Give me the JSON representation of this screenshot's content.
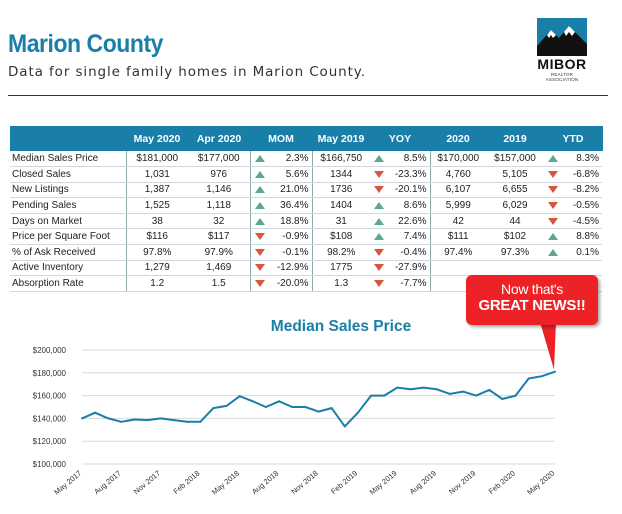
{
  "header": {
    "title": "Marion County",
    "subtitle": "Data for single family homes in Marion County."
  },
  "logo": {
    "brand": "MIBOR",
    "tagline": "REALTOR ASSOCIATION",
    "colors": {
      "background": "#1a7fa8",
      "mountain": "#111111",
      "snow": "#ffffff"
    }
  },
  "table": {
    "headers": [
      "",
      "May 2020",
      "Apr 2020",
      "MOM",
      "May 2019",
      "YOY",
      "2020",
      "2019",
      "YTD"
    ],
    "rows": [
      {
        "label": "Median Sales Price",
        "may2020": "$181,000",
        "apr2020": "$177,000",
        "mom_dir": "up",
        "mom": "2.3%",
        "may2019": "$166,750",
        "yoy_dir": "up",
        "yoy": "8.5%",
        "y2020": "$170,000",
        "y2019": "$157,000",
        "ytd_dir": "up",
        "ytd": "8.3%"
      },
      {
        "label": "Closed Sales",
        "may2020": "1,031",
        "apr2020": "976",
        "mom_dir": "up",
        "mom": "5.6%",
        "may2019": "1344",
        "yoy_dir": "down",
        "yoy": "-23.3%",
        "y2020": "4,760",
        "y2019": "5,105",
        "ytd_dir": "down",
        "ytd": "-6.8%"
      },
      {
        "label": "New Listings",
        "may2020": "1,387",
        "apr2020": "1,146",
        "mom_dir": "up",
        "mom": "21.0%",
        "may2019": "1736",
        "yoy_dir": "down",
        "yoy": "-20.1%",
        "y2020": "6,107",
        "y2019": "6,655",
        "ytd_dir": "down",
        "ytd": "-8.2%"
      },
      {
        "label": "Pending Sales",
        "may2020": "1,525",
        "apr2020": "1,118",
        "mom_dir": "up",
        "mom": "36.4%",
        "may2019": "1404",
        "yoy_dir": "up",
        "yoy": "8.6%",
        "y2020": "5,999",
        "y2019": "6,029",
        "ytd_dir": "down",
        "ytd": "-0.5%"
      },
      {
        "label": "Days on Market",
        "may2020": "38",
        "apr2020": "32",
        "mom_dir": "up",
        "mom": "18.8%",
        "may2019": "31",
        "yoy_dir": "up",
        "yoy": "22.6%",
        "y2020": "42",
        "y2019": "44",
        "ytd_dir": "down",
        "ytd": "-4.5%"
      },
      {
        "label": "Price per Square Foot",
        "may2020": "$116",
        "apr2020": "$117",
        "mom_dir": "down",
        "mom": "-0.9%",
        "may2019": "$108",
        "yoy_dir": "up",
        "yoy": "7.4%",
        "y2020": "$111",
        "y2019": "$102",
        "ytd_dir": "up",
        "ytd": "8.8%"
      },
      {
        "label": "% of Ask Received",
        "may2020": "97.8%",
        "apr2020": "97.9%",
        "mom_dir": "down",
        "mom": "-0.1%",
        "may2019": "98.2%",
        "yoy_dir": "down",
        "yoy": "-0.4%",
        "y2020": "97.4%",
        "y2019": "97.3%",
        "ytd_dir": "up",
        "ytd": "0.1%"
      },
      {
        "label": "Active Inventory",
        "may2020": "1,279",
        "apr2020": "1,469",
        "mom_dir": "down",
        "mom": "-12.9%",
        "may2019": "1775",
        "yoy_dir": "down",
        "yoy": "-27.9%",
        "y2020": "",
        "y2019": "",
        "ytd_dir": "",
        "ytd": ""
      },
      {
        "label": "Absorption Rate",
        "may2020": "1.2",
        "apr2020": "1.5",
        "mom_dir": "down",
        "mom": "-20.0%",
        "may2019": "1.3",
        "yoy_dir": "down",
        "yoy": "-7.7%",
        "y2020": "",
        "y2019": "",
        "ytd_dir": "",
        "ytd": ""
      }
    ],
    "colors": {
      "header_bg": "#1a7fa8",
      "up": "#5aa88f",
      "down": "#d9553c"
    }
  },
  "callout": {
    "line1": "Now that's",
    "line2": "GREAT NEWS!!",
    "color": "#ec2226"
  },
  "chart_data": {
    "type": "line",
    "title": "Median Sales Price",
    "xlabel": "",
    "ylabel": "",
    "ylim": [
      100000,
      200000
    ],
    "y_ticks": [
      "$100,000",
      "$120,000",
      "$140,000",
      "$160,000",
      "$180,000",
      "$200,000"
    ],
    "x_tick_labels": [
      "May 2017",
      "Aug 2017",
      "Nov 2017",
      "Feb 2018",
      "May 2018",
      "Aug 2018",
      "Nov 2018",
      "Feb 2019",
      "May 2019",
      "Aug 2019",
      "Nov 2019",
      "Feb 2020",
      "May 2020"
    ],
    "x": [
      "2017-05",
      "2017-06",
      "2017-07",
      "2017-08",
      "2017-09",
      "2017-10",
      "2017-11",
      "2017-12",
      "2018-01",
      "2018-02",
      "2018-03",
      "2018-04",
      "2018-05",
      "2018-06",
      "2018-07",
      "2018-08",
      "2018-09",
      "2018-10",
      "2018-11",
      "2018-12",
      "2019-01",
      "2019-02",
      "2019-03",
      "2019-04",
      "2019-05",
      "2019-06",
      "2019-07",
      "2019-08",
      "2019-09",
      "2019-10",
      "2019-11",
      "2019-12",
      "2020-01",
      "2020-02",
      "2020-03",
      "2020-04",
      "2020-05"
    ],
    "values": [
      140000,
      145000,
      140000,
      137000,
      139000,
      138500,
      140000,
      138500,
      137000,
      137000,
      149000,
      151000,
      159500,
      155000,
      150000,
      155000,
      150000,
      150000,
      146000,
      149000,
      133000,
      145000,
      160000,
      160000,
      167000,
      165500,
      167000,
      165500,
      161500,
      163500,
      160000,
      165000,
      157000,
      160000,
      175000,
      177000,
      181000
    ],
    "grid": true,
    "line_color": "#1a7fa8"
  }
}
